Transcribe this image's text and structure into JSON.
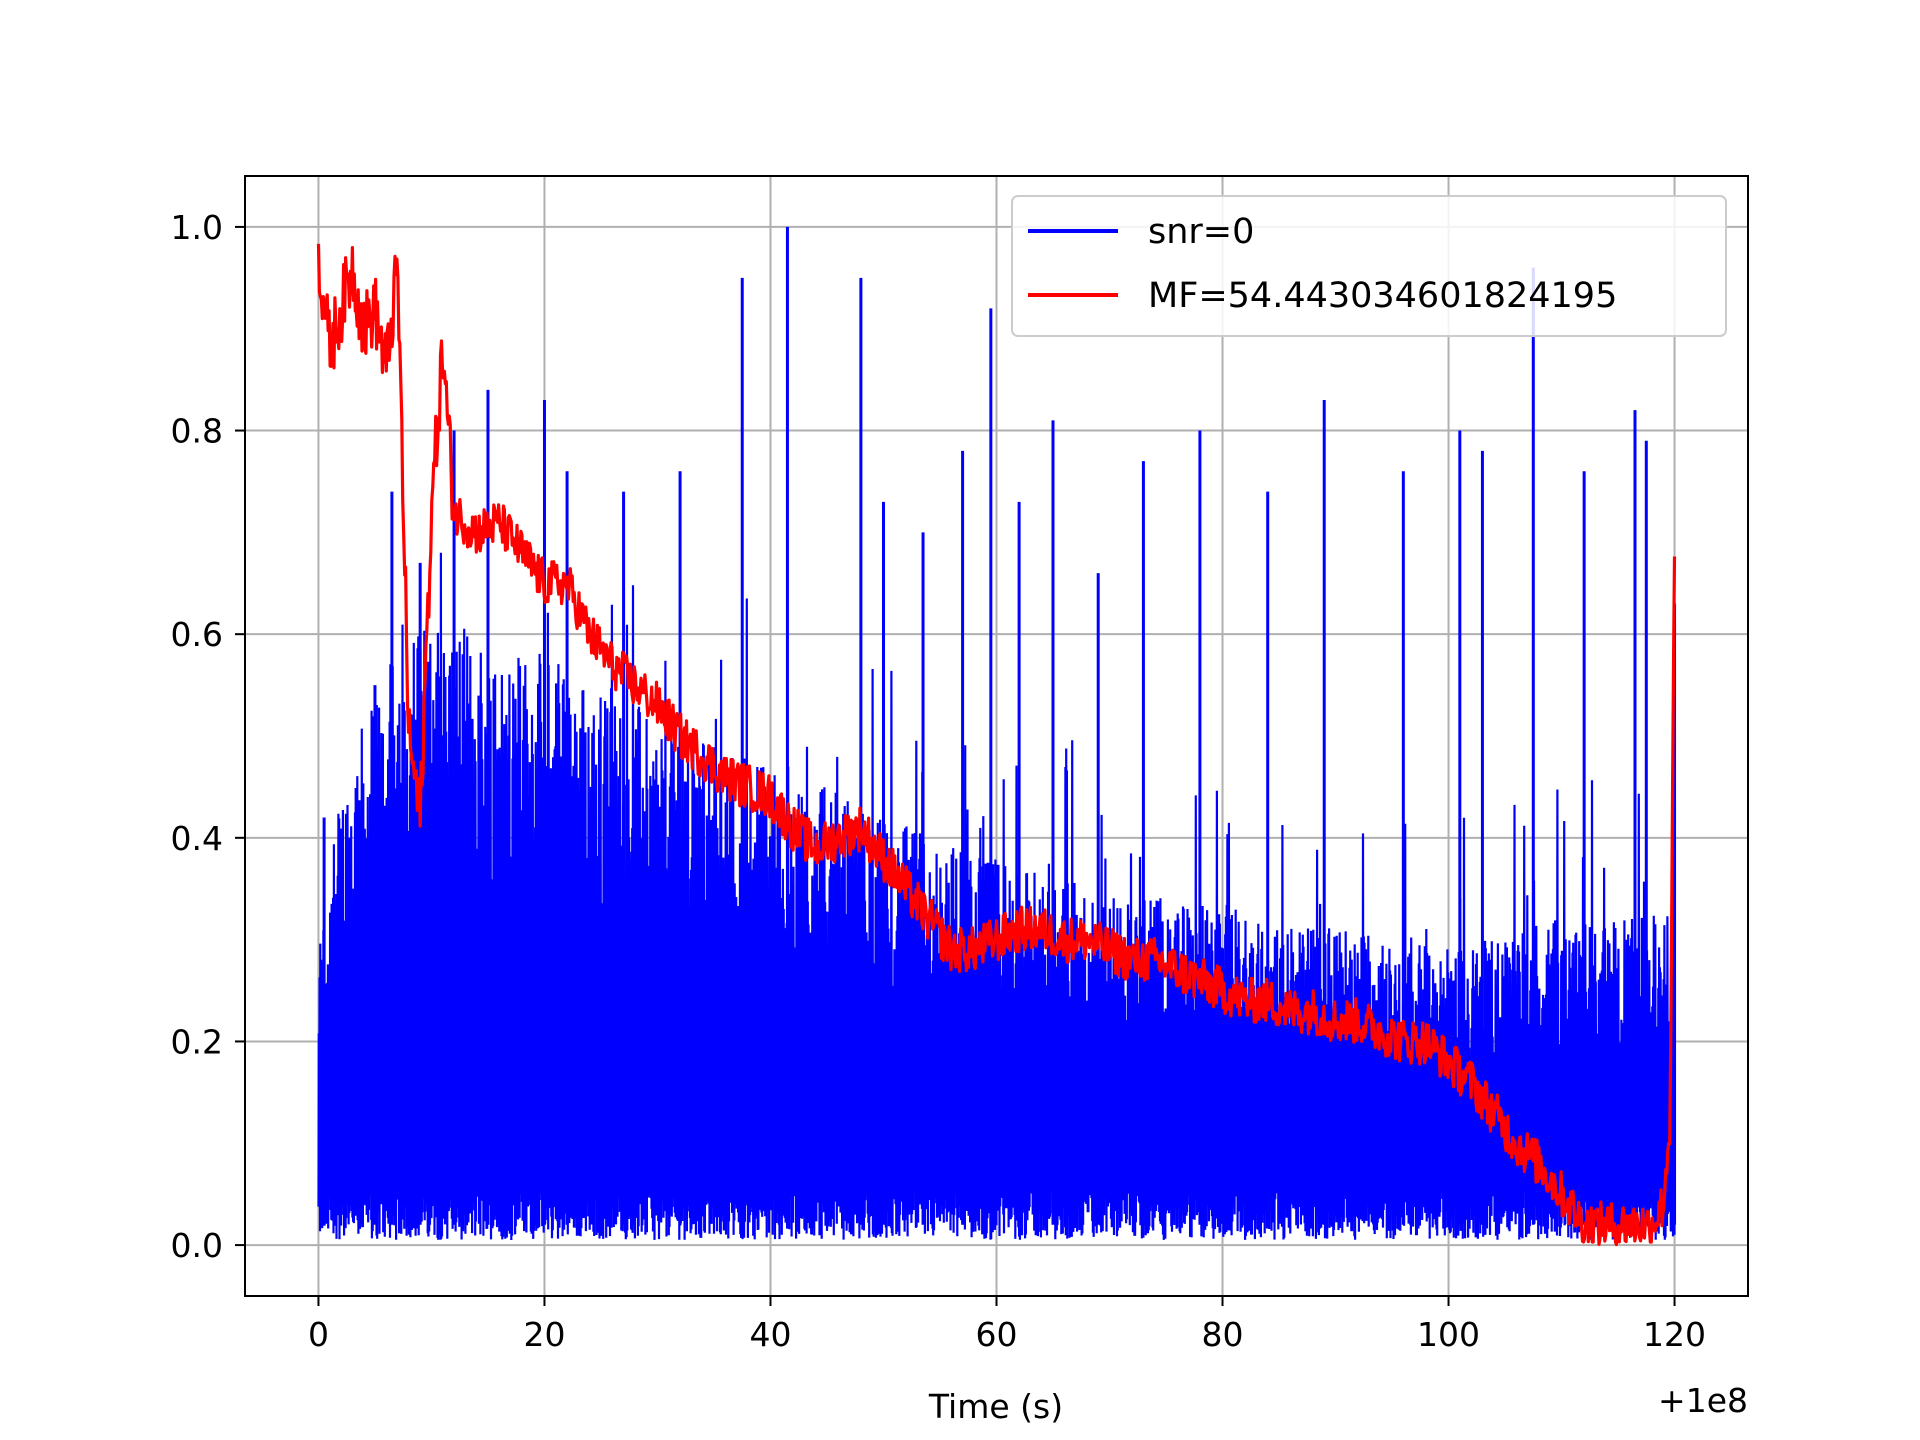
{
  "chart_data": {
    "type": "line",
    "title": "",
    "xlabel": "Time (s)",
    "ylabel": "",
    "x_offset_label": "+1e8",
    "xlim": [
      -6.5,
      126.5
    ],
    "ylim": [
      -0.05,
      1.05
    ],
    "x_ticks": [
      0,
      20,
      40,
      60,
      80,
      100,
      120
    ],
    "y_ticks": [
      0.0,
      0.2,
      0.4,
      0.6,
      0.8,
      1.0
    ],
    "x_tick_labels": [
      "0",
      "20",
      "40",
      "60",
      "80",
      "100",
      "120"
    ],
    "y_tick_labels": [
      "0.0",
      "0.2",
      "0.4",
      "0.6",
      "0.8",
      "1.0"
    ],
    "grid": true,
    "legend_position": "top-right",
    "series": [
      {
        "name": "snr=0",
        "color": "#0000ff",
        "description_points_x": [
          0,
          2,
          5,
          8,
          10,
          15,
          20,
          25,
          30,
          35,
          40,
          45,
          50,
          55,
          60,
          65,
          70,
          75,
          80,
          85,
          90,
          95,
          100,
          105,
          110,
          115,
          120
        ],
        "envelope_top": [
          0.3,
          0.45,
          0.55,
          0.6,
          0.62,
          0.6,
          0.58,
          0.55,
          0.52,
          0.5,
          0.48,
          0.45,
          0.42,
          0.4,
          0.38,
          0.36,
          0.35,
          0.34,
          0.33,
          0.32,
          0.31,
          0.3,
          0.3,
          0.3,
          0.32,
          0.32,
          0.33
        ],
        "peaks_x": [
          0.5,
          5,
          6.5,
          9,
          12,
          15,
          20,
          22,
          27,
          32,
          37.5,
          41.5,
          48,
          50,
          53.5,
          57,
          59.5,
          62,
          65,
          69,
          73,
          78,
          84,
          89,
          96,
          101,
          103,
          107.5,
          112,
          116.5,
          117.5,
          120
        ],
        "peaks_y": [
          0.42,
          0.55,
          0.74,
          0.67,
          0.8,
          0.84,
          0.83,
          0.76,
          0.74,
          0.76,
          0.95,
          1.0,
          0.95,
          0.73,
          0.7,
          0.78,
          0.92,
          0.73,
          0.81,
          0.66,
          0.77,
          0.8,
          0.74,
          0.83,
          0.76,
          0.8,
          0.78,
          0.96,
          0.76,
          0.82,
          0.79,
          0.63
        ]
      },
      {
        "name": "MF=54.443034601824195",
        "color": "#ff0000",
        "x": [
          0,
          1,
          2,
          3,
          4,
          5,
          6,
          7,
          8,
          9,
          10,
          11,
          12,
          14,
          16,
          18,
          20,
          22,
          24,
          26,
          28,
          30,
          32,
          34,
          36,
          38,
          40,
          42,
          44,
          46,
          48,
          50,
          52,
          54,
          56,
          58,
          60,
          62,
          64,
          66,
          68,
          70,
          72,
          74,
          76,
          78,
          80,
          82,
          84,
          86,
          88,
          90,
          92,
          94,
          96,
          98,
          100,
          102,
          104,
          106,
          108,
          110,
          112,
          114,
          116,
          118,
          119,
          119.6,
          120
        ],
        "y": [
          0.97,
          0.88,
          0.92,
          0.96,
          0.9,
          0.92,
          0.86,
          0.96,
          0.5,
          0.42,
          0.72,
          0.88,
          0.72,
          0.7,
          0.71,
          0.68,
          0.65,
          0.65,
          0.6,
          0.57,
          0.55,
          0.53,
          0.5,
          0.48,
          0.46,
          0.45,
          0.44,
          0.41,
          0.39,
          0.4,
          0.41,
          0.38,
          0.35,
          0.32,
          0.29,
          0.29,
          0.3,
          0.31,
          0.31,
          0.3,
          0.3,
          0.29,
          0.28,
          0.28,
          0.27,
          0.26,
          0.25,
          0.24,
          0.24,
          0.23,
          0.23,
          0.22,
          0.22,
          0.21,
          0.2,
          0.2,
          0.18,
          0.16,
          0.13,
          0.1,
          0.08,
          0.05,
          0.02,
          0.02,
          0.02,
          0.02,
          0.04,
          0.12,
          0.68
        ]
      }
    ]
  }
}
